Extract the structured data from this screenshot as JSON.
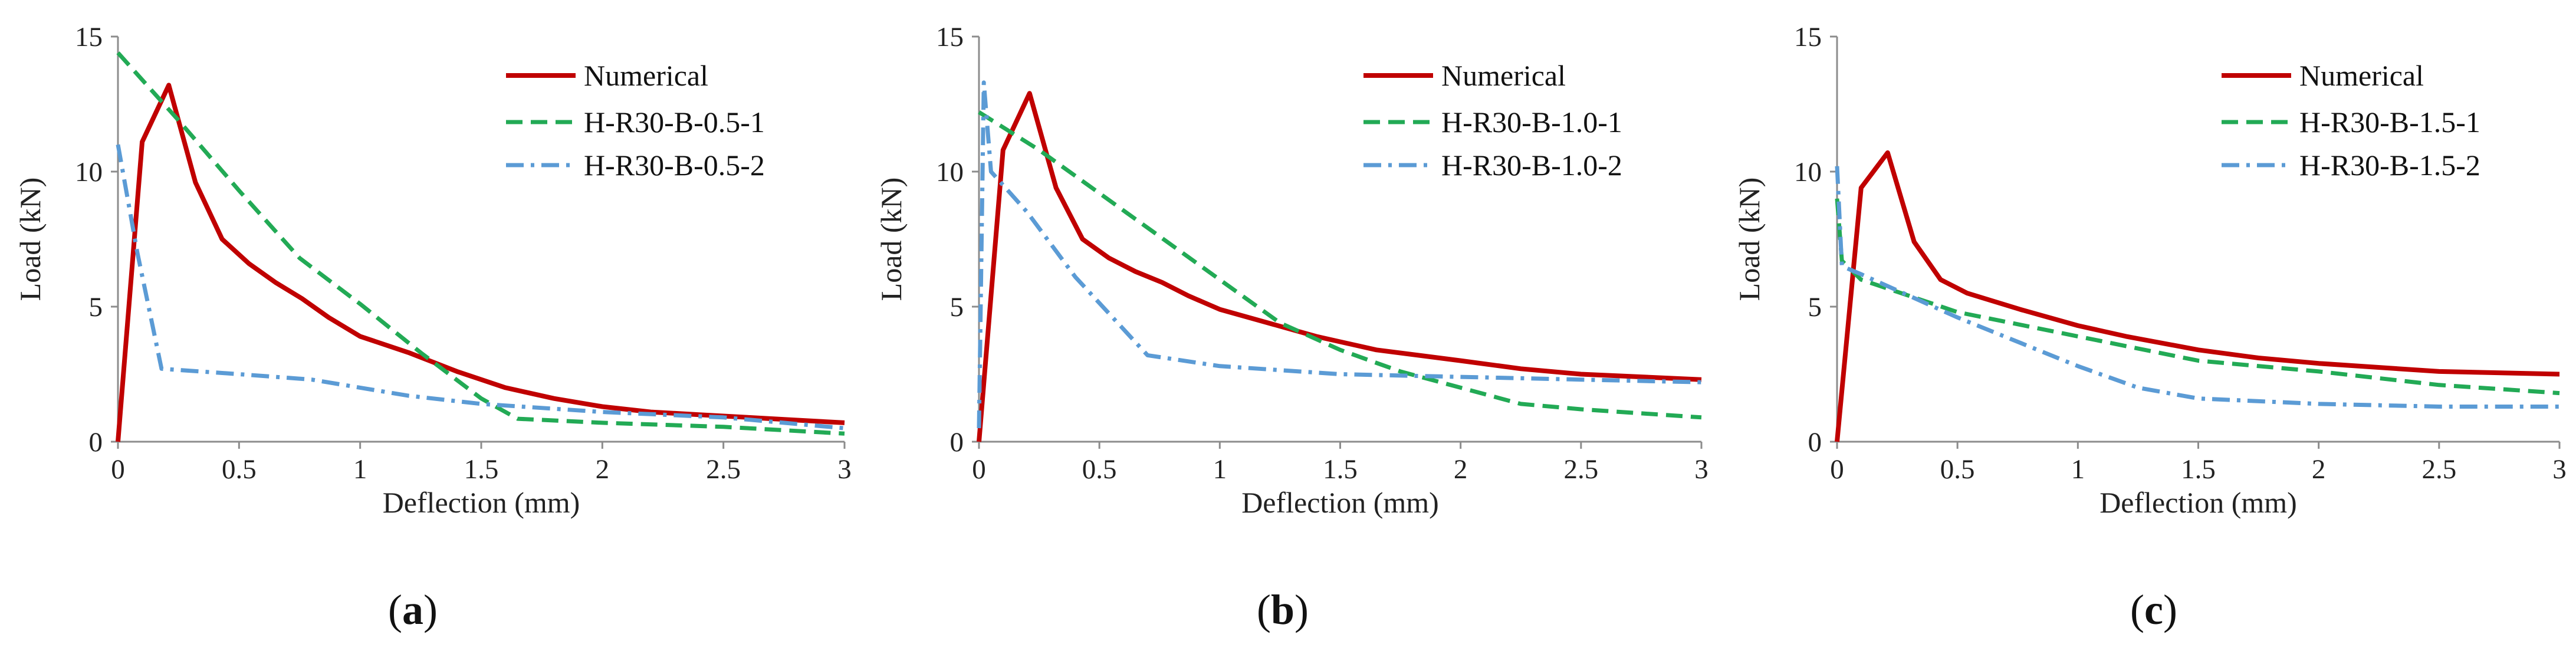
{
  "figure": {
    "panels": [
      {
        "label": "a",
        "legend": [
          "Numerical",
          "H-R30-B-0.5-1",
          "H-R30-B-0.5-2"
        ]
      },
      {
        "label": "b",
        "legend": [
          "Numerical",
          "H-R30-B-1.0-1",
          "H-R30-B-1.0-2"
        ]
      },
      {
        "label": "c",
        "legend": [
          "Numerical",
          "H-R30-B-1.5-1",
          "H-R30-B-1.5-2"
        ]
      }
    ]
  },
  "chart_data": [
    {
      "type": "line",
      "panel_label": "a",
      "xlabel": "Deflection (mm)",
      "ylabel": "Load (kN)",
      "xlim": [
        0,
        3
      ],
      "ylim": [
        0,
        15
      ],
      "xticks": [
        0,
        0.5,
        1,
        1.5,
        2,
        2.5,
        3
      ],
      "xtick_labels": [
        "0",
        "0.5",
        "1",
        "1.5",
        "2",
        "2.5",
        "3"
      ],
      "yticks": [
        0,
        5,
        10,
        15
      ],
      "ytick_labels": [
        "0",
        "5",
        "10",
        "15"
      ],
      "legend_position": "top-right",
      "series": [
        {
          "name": "Numerical",
          "style": "solid",
          "color": "#c00000",
          "x": [
            0,
            0.1,
            0.21,
            0.32,
            0.43,
            0.54,
            0.65,
            0.76,
            0.87,
            1.0,
            1.2,
            1.4,
            1.6,
            1.8,
            2.0,
            2.2,
            2.4,
            2.6,
            2.8,
            3.0
          ],
          "y": [
            0,
            11.1,
            13.2,
            9.6,
            7.5,
            6.6,
            5.9,
            5.3,
            4.6,
            3.9,
            3.3,
            2.6,
            2.0,
            1.6,
            1.3,
            1.1,
            1.0,
            0.9,
            0.8,
            0.7
          ]
        },
        {
          "name": "H-R30-B-0.5-1",
          "style": "dashed",
          "color": "#22aa55",
          "x": [
            0,
            0.25,
            0.5,
            0.75,
            1.0,
            1.25,
            1.5,
            1.65,
            2.0,
            2.5,
            3.0
          ],
          "y": [
            14.4,
            11.9,
            9.3,
            6.8,
            5.1,
            3.3,
            1.6,
            0.85,
            0.7,
            0.55,
            0.3
          ]
        },
        {
          "name": "H-R30-B-0.5-2",
          "style": "dashdot",
          "color": "#5b9bd5",
          "x": [
            0,
            0.08,
            0.18,
            0.5,
            0.8,
            1.0,
            1.2,
            1.5,
            2.0,
            2.5,
            3.0
          ],
          "y": [
            11.0,
            7.0,
            2.7,
            2.5,
            2.3,
            2.0,
            1.7,
            1.4,
            1.1,
            0.9,
            0.5
          ]
        }
      ]
    },
    {
      "type": "line",
      "panel_label": "b",
      "xlabel": "Deflection (mm)",
      "ylabel": "Load (kN)",
      "xlim": [
        0,
        3
      ],
      "ylim": [
        0,
        15
      ],
      "xticks": [
        0,
        0.5,
        1,
        1.5,
        2,
        2.5,
        3
      ],
      "xtick_labels": [
        "0",
        "0.5",
        "1",
        "1.5",
        "2",
        "2.5",
        "3"
      ],
      "yticks": [
        0,
        5,
        10,
        15
      ],
      "ytick_labels": [
        "0",
        "5",
        "10",
        "15"
      ],
      "legend_position": "top-right",
      "series": [
        {
          "name": "Numerical",
          "style": "solid",
          "color": "#c00000",
          "x": [
            0,
            0.1,
            0.21,
            0.32,
            0.43,
            0.54,
            0.65,
            0.76,
            0.87,
            1.0,
            1.2,
            1.4,
            1.65,
            2.0,
            2.25,
            2.5,
            3.0
          ],
          "y": [
            0,
            10.8,
            12.9,
            9.4,
            7.5,
            6.8,
            6.3,
            5.9,
            5.4,
            4.9,
            4.4,
            3.9,
            3.4,
            3.0,
            2.7,
            2.5,
            2.3
          ]
        },
        {
          "name": "H-R30-B-1.0-1",
          "style": "dashed",
          "color": "#22aa55",
          "x": [
            0,
            0.25,
            0.5,
            0.75,
            1.0,
            1.25,
            1.5,
            1.75,
            2.0,
            2.25,
            2.5,
            3.0
          ],
          "y": [
            12.2,
            10.8,
            9.2,
            7.6,
            6.0,
            4.4,
            3.4,
            2.6,
            2.0,
            1.4,
            1.2,
            0.9
          ]
        },
        {
          "name": "H-R30-B-1.0-2",
          "style": "dashdot",
          "color": "#5b9bd5",
          "x": [
            0,
            0.02,
            0.05,
            0.2,
            0.4,
            0.7,
            1.0,
            1.5,
            2.0,
            2.5,
            3.0
          ],
          "y": [
            0.5,
            13.3,
            10.0,
            8.5,
            6.1,
            3.2,
            2.8,
            2.5,
            2.4,
            2.3,
            2.2
          ]
        }
      ]
    },
    {
      "type": "line",
      "panel_label": "c",
      "xlabel": "Deflection (mm)",
      "ylabel": "Load (kN)",
      "xlim": [
        0,
        3
      ],
      "ylim": [
        0,
        15
      ],
      "xticks": [
        0,
        0.5,
        1,
        1.5,
        2,
        2.5,
        3
      ],
      "xtick_labels": [
        "0",
        "0.5",
        "1",
        "1.5",
        "2",
        "2.5",
        "3"
      ],
      "yticks": [
        0,
        5,
        10,
        15
      ],
      "ytick_labels": [
        "0",
        "5",
        "10",
        "15"
      ],
      "legend_position": "top-right",
      "series": [
        {
          "name": "Numerical",
          "style": "solid",
          "color": "#c00000",
          "x": [
            0,
            0.1,
            0.21,
            0.32,
            0.43,
            0.54,
            0.76,
            1.0,
            1.2,
            1.5,
            1.75,
            2.0,
            2.5,
            3.0
          ],
          "y": [
            0,
            9.4,
            10.7,
            7.4,
            6.0,
            5.5,
            4.9,
            4.3,
            3.9,
            3.4,
            3.1,
            2.9,
            2.6,
            2.5
          ]
        },
        {
          "name": "H-R30-B-1.5-1",
          "style": "dashed",
          "color": "#22aa55",
          "x": [
            0,
            0.02,
            0.1,
            0.5,
            1.0,
            1.5,
            2.0,
            2.5,
            3.0
          ],
          "y": [
            9.0,
            6.7,
            6.0,
            4.8,
            3.9,
            3.0,
            2.6,
            2.1,
            1.8
          ]
        },
        {
          "name": "H-R30-B-1.5-2",
          "style": "dashdot",
          "color": "#5b9bd5",
          "x": [
            0,
            0.02,
            0.1,
            0.5,
            1.0,
            1.25,
            1.5,
            2.0,
            2.5,
            3.0
          ],
          "y": [
            10.2,
            6.5,
            6.2,
            4.6,
            2.8,
            2.0,
            1.6,
            1.4,
            1.3,
            1.3
          ]
        }
      ]
    }
  ]
}
